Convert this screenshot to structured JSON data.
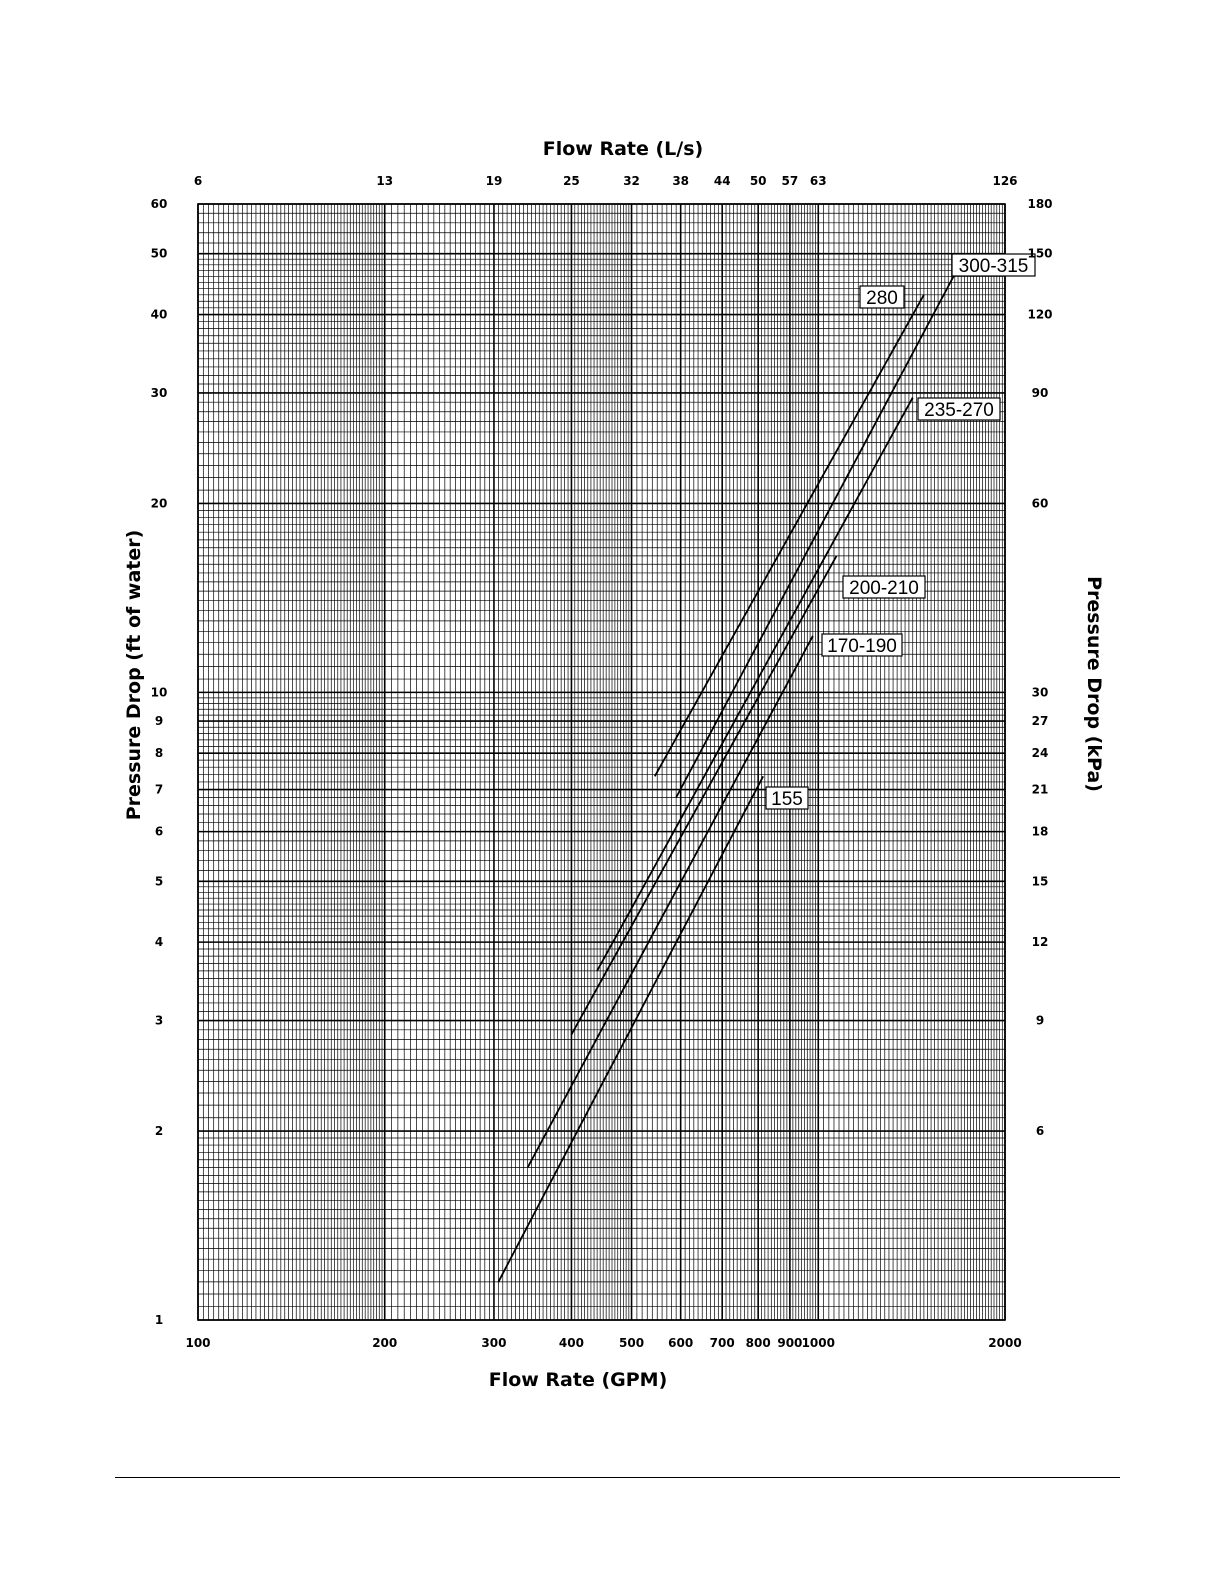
{
  "chart_data": {
    "type": "line",
    "title": "",
    "x_axis": {
      "label": "Flow Rate (GPM)",
      "scale": "log",
      "range": [
        100,
        2000
      ],
      "ticks": [
        {
          "value": 100,
          "label": "100"
        },
        {
          "value": 200,
          "label": "200"
        },
        {
          "value": 300,
          "label": "300"
        },
        {
          "value": 400,
          "label": "400"
        },
        {
          "value": 500,
          "label": "500"
        },
        {
          "value": 600,
          "label": "600"
        },
        {
          "value": 700,
          "label": "700"
        },
        {
          "value": 800,
          "label": "800"
        },
        {
          "value": 900,
          "label": "900"
        },
        {
          "value": 1000,
          "label": "1000"
        },
        {
          "value": 2000,
          "label": "2000"
        }
      ]
    },
    "x2_axis": {
      "label": "Flow Rate (L/s)",
      "ticks": [
        {
          "at_gpm": 100,
          "label": "6"
        },
        {
          "at_gpm": 200,
          "label": "13"
        },
        {
          "at_gpm": 300,
          "label": "19"
        },
        {
          "at_gpm": 400,
          "label": "25"
        },
        {
          "at_gpm": 500,
          "label": "32"
        },
        {
          "at_gpm": 600,
          "label": "38"
        },
        {
          "at_gpm": 700,
          "label": "44"
        },
        {
          "at_gpm": 800,
          "label": "50"
        },
        {
          "at_gpm": 900,
          "label": "57"
        },
        {
          "at_gpm": 1000,
          "label": "63"
        },
        {
          "at_gpm": 2000,
          "label": "126"
        }
      ]
    },
    "y_axis": {
      "label": "Pressure Drop (ft of water)",
      "scale": "log",
      "range": [
        1,
        60
      ],
      "ticks": [
        {
          "value": 1,
          "label": "1"
        },
        {
          "value": 2,
          "label": "2"
        },
        {
          "value": 3,
          "label": "3"
        },
        {
          "value": 4,
          "label": "4"
        },
        {
          "value": 5,
          "label": "5"
        },
        {
          "value": 6,
          "label": "6"
        },
        {
          "value": 7,
          "label": "7"
        },
        {
          "value": 8,
          "label": "8"
        },
        {
          "value": 9,
          "label": "9"
        },
        {
          "value": 10,
          "label": "10"
        },
        {
          "value": 20,
          "label": "20"
        },
        {
          "value": 30,
          "label": "30"
        },
        {
          "value": 40,
          "label": "40"
        },
        {
          "value": 50,
          "label": "50"
        },
        {
          "value": 60,
          "label": "60"
        }
      ]
    },
    "y2_axis": {
      "label": "Pressure Drop (kPa)",
      "ticks": [
        {
          "at_ft": 2,
          "label": "6"
        },
        {
          "at_ft": 3,
          "label": "9"
        },
        {
          "at_ft": 4,
          "label": "12"
        },
        {
          "at_ft": 5,
          "label": "15"
        },
        {
          "at_ft": 6,
          "label": "18"
        },
        {
          "at_ft": 7,
          "label": "21"
        },
        {
          "at_ft": 8,
          "label": "24"
        },
        {
          "at_ft": 9,
          "label": "27"
        },
        {
          "at_ft": 10,
          "label": "30"
        },
        {
          "at_ft": 20,
          "label": "60"
        },
        {
          "at_ft": 30,
          "label": "90"
        },
        {
          "at_ft": 40,
          "label": "120"
        },
        {
          "at_ft": 50,
          "label": "150"
        },
        {
          "at_ft": 60,
          "label": "180"
        }
      ]
    },
    "grid": true,
    "series": [
      {
        "name": "155",
        "points": [
          [
            305,
            1.15
          ],
          [
            815,
            7.35
          ]
        ]
      },
      {
        "name": "170-190",
        "points": [
          [
            340,
            1.75
          ],
          [
            980,
            12.3
          ]
        ]
      },
      {
        "name": "200-210",
        "points": [
          [
            400,
            2.85
          ],
          [
            1070,
            16.5
          ]
        ]
      },
      {
        "name": "235-270",
        "points": [
          [
            440,
            3.6
          ],
          [
            1420,
            29.5
          ]
        ]
      },
      {
        "name": "280",
        "points": [
          [
            545,
            7.35
          ],
          [
            1480,
            43.0
          ]
        ]
      },
      {
        "name": "300-315",
        "points": [
          [
            590,
            6.8
          ],
          [
            1700,
            48.5
          ]
        ]
      }
    ]
  }
}
